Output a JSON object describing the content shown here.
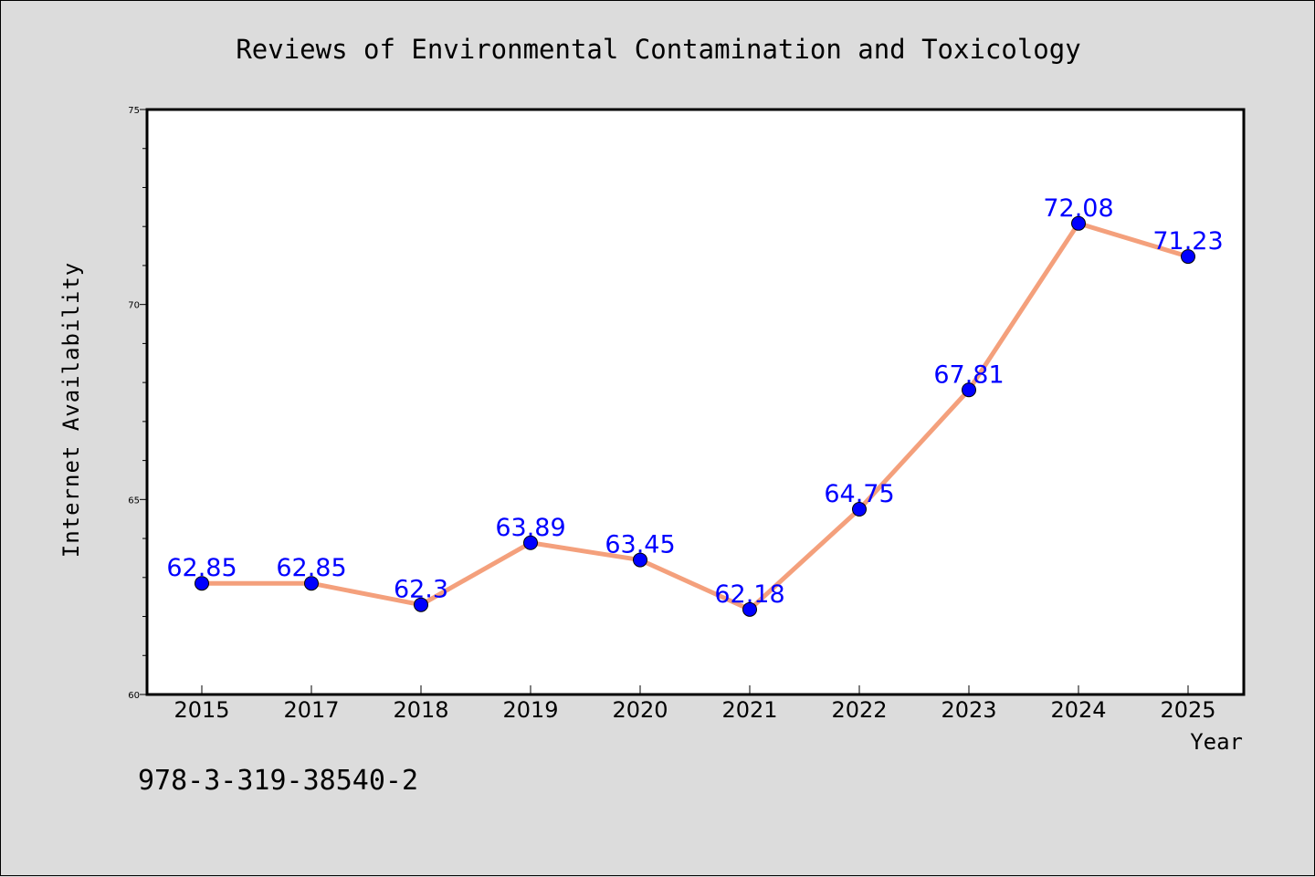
{
  "chart_data": {
    "type": "line",
    "title": "Reviews of Environmental Contamination and Toxicology",
    "xlabel": "Year",
    "ylabel": "Internet Availability",
    "categories": [
      "2015",
      "2017",
      "2018",
      "2019",
      "2020",
      "2021",
      "2022",
      "2023",
      "2024",
      "2025"
    ],
    "series": [
      {
        "values": [
          62.85,
          62.85,
          62.3,
          63.89,
          63.45,
          62.18,
          64.75,
          67.81,
          72.08,
          71.23
        ]
      }
    ],
    "data_labels": [
      "62.85",
      "62.85",
      "62.3",
      "63.89",
      "63.45",
      "62.18",
      "64.75",
      "67.81",
      "72.08",
      "71.23"
    ],
    "ylim": [
      60,
      75
    ],
    "yticks": [
      60,
      65,
      70,
      75
    ],
    "grid": false,
    "legend": "none",
    "colors": {
      "line": "#f4a07c",
      "marker": "#0000ff",
      "label": "#0000ff",
      "background": "#dcdcdc",
      "plot_background": "#ffffff"
    }
  },
  "footer": {
    "text": "978-3-319-38540-2"
  }
}
